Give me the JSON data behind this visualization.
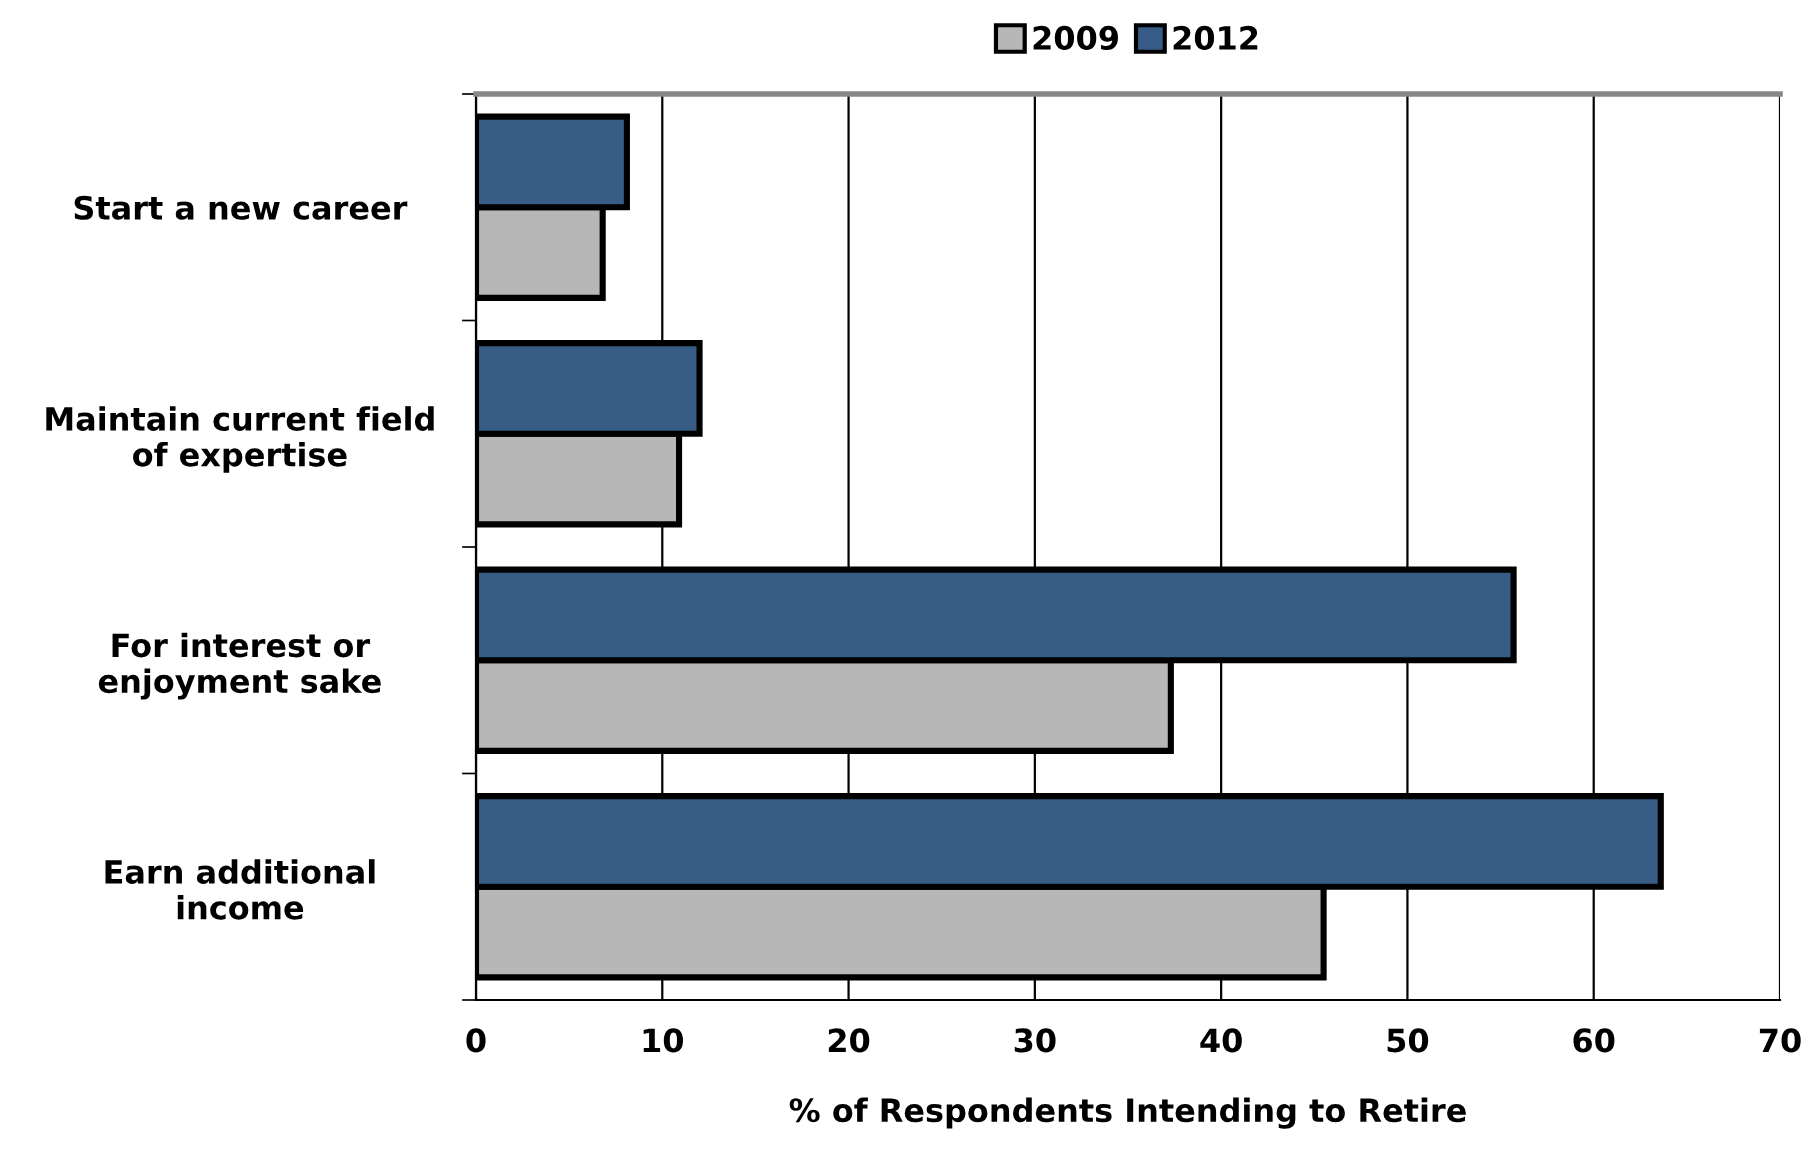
{
  "chart_data": {
    "type": "bar",
    "orientation": "horizontal",
    "xlabel": "% of Respondents Intending to Retire",
    "categories": [
      "Start a new career",
      "Maintain current field\nof expertise",
      "For interest or\nenjoyment sake",
      "Earn additional\nincome"
    ],
    "series": [
      {
        "name": "2009",
        "color": "#b7b7b7",
        "values": [
          6.8,
          10.9,
          37.3,
          45.5
        ]
      },
      {
        "name": "2012",
        "color": "#375d87",
        "values": [
          8.1,
          12.0,
          55.7,
          63.6
        ]
      }
    ],
    "xlim": [
      0,
      70
    ],
    "xticks": [
      0,
      10,
      20,
      30,
      40,
      50,
      60,
      70
    ],
    "grid": "x",
    "legend": "top"
  }
}
